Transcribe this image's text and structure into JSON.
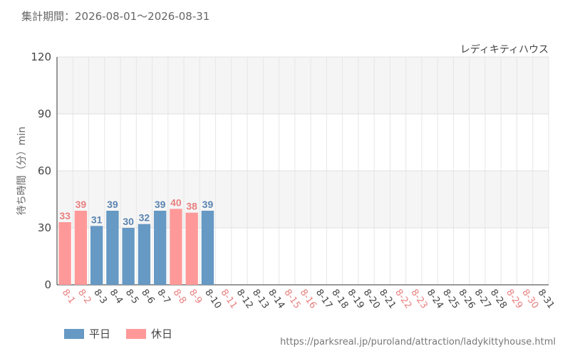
{
  "period": "集計期間：2026-08-01〜2026-08-31",
  "source_url": "https://parksreal.jp/puroland/attraction/ladykittyhouse.html",
  "legend": [
    {
      "label": "平日",
      "color": "#6699c4"
    },
    {
      "label": "休日",
      "color": "#ff9999"
    }
  ],
  "chart_data": {
    "type": "bar",
    "title": "レディキティハウス",
    "ylabel": "待ち時間（分）min",
    "ylim": [
      0,
      120
    ],
    "yticks": [
      0,
      30,
      60,
      90,
      120
    ],
    "grid": true,
    "legend_position": "bottom-left",
    "colors": {
      "weekday": "#6699c4",
      "holiday": "#ff9999",
      "weekday_text": "#5a84b0",
      "holiday_text": "#e87f7f"
    },
    "categories": [
      "8-1",
      "8-2",
      "8-3",
      "8-4",
      "8-5",
      "8-6",
      "8-7",
      "8-8",
      "8-9",
      "8-10",
      "8-11",
      "8-12",
      "8-13",
      "8-14",
      "8-15",
      "8-16",
      "8-17",
      "8-18",
      "8-19",
      "8-20",
      "8-21",
      "8-22",
      "8-23",
      "8-24",
      "8-25",
      "8-26",
      "8-27",
      "8-28",
      "8-29",
      "8-30",
      "8-31"
    ],
    "day_type": [
      "holiday",
      "holiday",
      "weekday",
      "weekday",
      "weekday",
      "weekday",
      "weekday",
      "holiday",
      "holiday",
      "weekday",
      "holiday",
      "weekday",
      "weekday",
      "weekday",
      "holiday",
      "holiday",
      "weekday",
      "weekday",
      "weekday",
      "weekday",
      "weekday",
      "holiday",
      "holiday",
      "weekday",
      "weekday",
      "weekday",
      "weekday",
      "weekday",
      "holiday",
      "holiday",
      "weekday"
    ],
    "values": [
      33,
      39,
      31,
      39,
      30,
      32,
      39,
      40,
      38,
      39,
      null,
      null,
      null,
      null,
      null,
      null,
      null,
      null,
      null,
      null,
      null,
      null,
      null,
      null,
      null,
      null,
      null,
      null,
      null,
      null,
      null
    ]
  }
}
